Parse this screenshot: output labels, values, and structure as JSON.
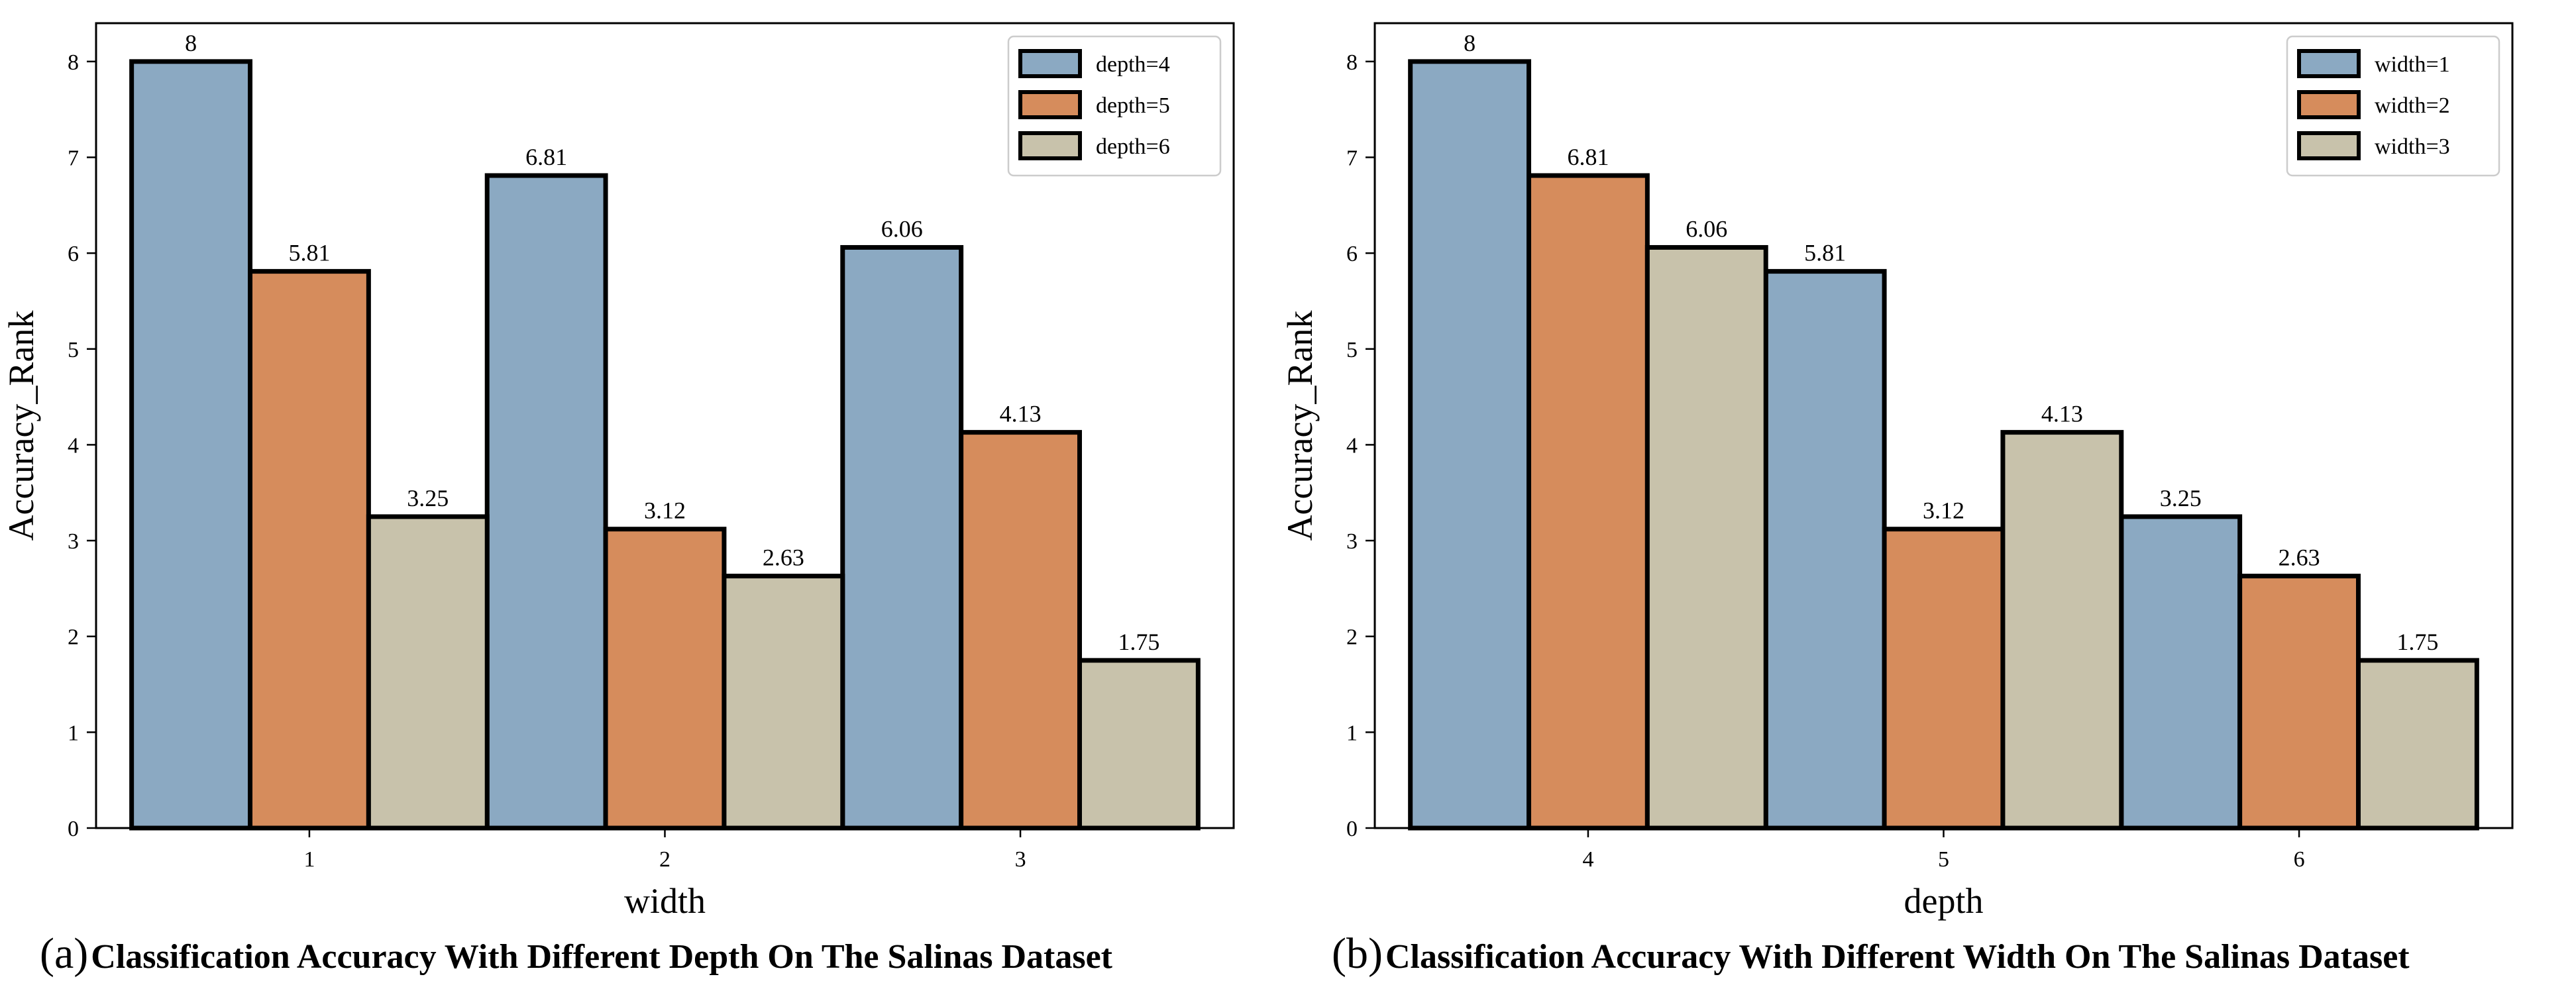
{
  "chart_data": [
    {
      "type": "bar",
      "caption_letter": "(a)",
      "caption": "Classification Accuracy With Different Depth On The Salinas Dataset",
      "categories": [
        "1",
        "2",
        "3"
      ],
      "xlabel": "width",
      "ylabel": "Accuracy_Rank",
      "ylim": [
        0,
        8.4
      ],
      "yticks": [
        "0",
        "1",
        "2",
        "3",
        "4",
        "5",
        "6",
        "7",
        "8"
      ],
      "legend_position": "top-right",
      "series": [
        {
          "name": "depth=4",
          "values": [
            8,
            6.81,
            6.06
          ],
          "labels": [
            "8",
            "6.81",
            "6.06"
          ],
          "color": "#8ba9c2"
        },
        {
          "name": "depth=5",
          "values": [
            5.81,
            3.12,
            4.13
          ],
          "labels": [
            "5.81",
            "3.12",
            "4.13"
          ],
          "color": "#d68c5c"
        },
        {
          "name": "depth=6",
          "values": [
            3.25,
            2.63,
            1.75
          ],
          "labels": [
            "3.25",
            "2.63",
            "1.75"
          ],
          "color": "#c8c2ab"
        }
      ]
    },
    {
      "type": "bar",
      "caption_letter": "(b)",
      "caption": "Classification Accuracy With Different Width On The Salinas Dataset",
      "categories": [
        "4",
        "5",
        "6"
      ],
      "xlabel": "depth",
      "ylabel": "Accuracy_Rank",
      "ylim": [
        0,
        8.4
      ],
      "yticks": [
        "0",
        "1",
        "2",
        "3",
        "4",
        "5",
        "6",
        "7",
        "8"
      ],
      "legend_position": "top-right",
      "series": [
        {
          "name": "width=1",
          "values": [
            8,
            5.81,
            3.25
          ],
          "labels": [
            "8",
            "5.81",
            "3.25"
          ],
          "color": "#8ba9c2"
        },
        {
          "name": "width=2",
          "values": [
            6.81,
            3.12,
            2.63
          ],
          "labels": [
            "6.81",
            "3.12",
            "2.63"
          ],
          "color": "#d68c5c"
        },
        {
          "name": "width=3",
          "values": [
            6.06,
            4.13,
            1.75
          ],
          "labels": [
            "6.06",
            "4.13",
            "1.75"
          ],
          "color": "#c8c2ab"
        }
      ]
    }
  ]
}
